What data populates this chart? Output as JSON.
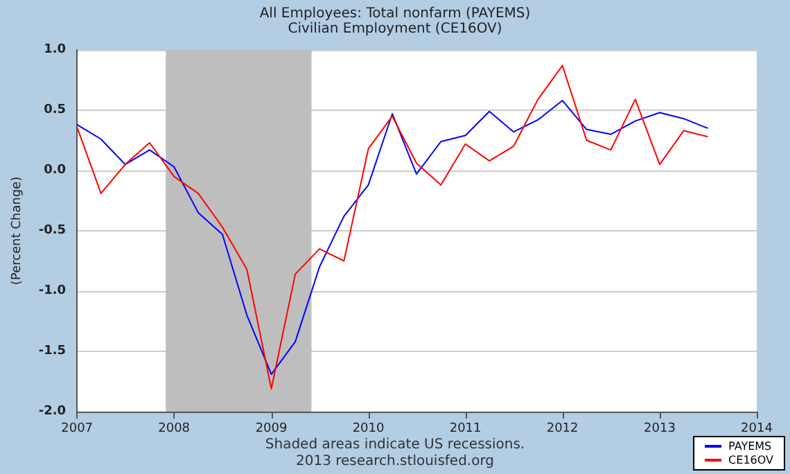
{
  "chart_data": {
    "type": "line",
    "title": "All Employees: Total nonfarm (PAYEMS)",
    "subtitle": "Civilian Employment (CE16OV)",
    "ylabel": "(Percent Change)",
    "x": [
      "2007-01",
      "2007-04",
      "2007-07",
      "2007-10",
      "2008-01",
      "2008-04",
      "2008-07",
      "2008-10",
      "2009-01",
      "2009-04",
      "2009-07",
      "2009-10",
      "2010-01",
      "2010-04",
      "2010-07",
      "2010-10",
      "2011-01",
      "2011-04",
      "2011-07",
      "2011-10",
      "2012-01",
      "2012-04",
      "2012-07",
      "2012-10",
      "2013-01",
      "2013-04",
      "2013-07"
    ],
    "series": [
      {
        "name": "PAYEMS",
        "color": "#0000ff",
        "values": [
          0.38,
          0.26,
          0.05,
          0.17,
          0.03,
          -0.35,
          -0.53,
          -1.2,
          -1.69,
          -1.42,
          -0.8,
          -0.38,
          -0.12,
          0.47,
          -0.03,
          0.24,
          0.29,
          0.49,
          0.32,
          0.42,
          0.58,
          0.34,
          0.3,
          0.41,
          0.48,
          0.43,
          0.35
        ]
      },
      {
        "name": "CE16OV",
        "color": "#ff0000",
        "values": [
          0.36,
          -0.19,
          0.05,
          0.23,
          -0.05,
          -0.19,
          -0.47,
          -0.82,
          -1.81,
          -0.86,
          -0.65,
          -0.75,
          0.18,
          0.45,
          0.06,
          -0.12,
          0.22,
          0.08,
          0.2,
          0.59,
          0.87,
          0.25,
          0.17,
          0.59,
          0.05,
          0.33,
          0.28
        ]
      }
    ],
    "xlim": [
      "2007",
      "2014"
    ],
    "xticks": [
      "2007",
      "2008",
      "2009",
      "2010",
      "2011",
      "2012",
      "2013",
      "2014"
    ],
    "ylim": [
      -2,
      1
    ],
    "yticks": [
      {
        "value": -2,
        "label": "-2.0"
      },
      {
        "value": -1.5,
        "label": "-1.5"
      },
      {
        "value": -1,
        "label": "-1.0"
      },
      {
        "value": -0.5,
        "label": "-0.5"
      },
      {
        "value": 0,
        "label": "0.0"
      },
      {
        "value": 0.5,
        "label": "0.5"
      },
      {
        "value": 1,
        "label": "1.0"
      }
    ],
    "bands": [
      {
        "axis": "x",
        "from": "2007-12",
        "to": "2009-06",
        "color": "#bebebe"
      }
    ],
    "annotations": [
      "Shaded areas indicate US recessions.",
      "2013 research.stlouisfed.org"
    ],
    "grid": "y",
    "legend": "bottom right",
    "marker": "none",
    "line_style": "solid"
  }
}
